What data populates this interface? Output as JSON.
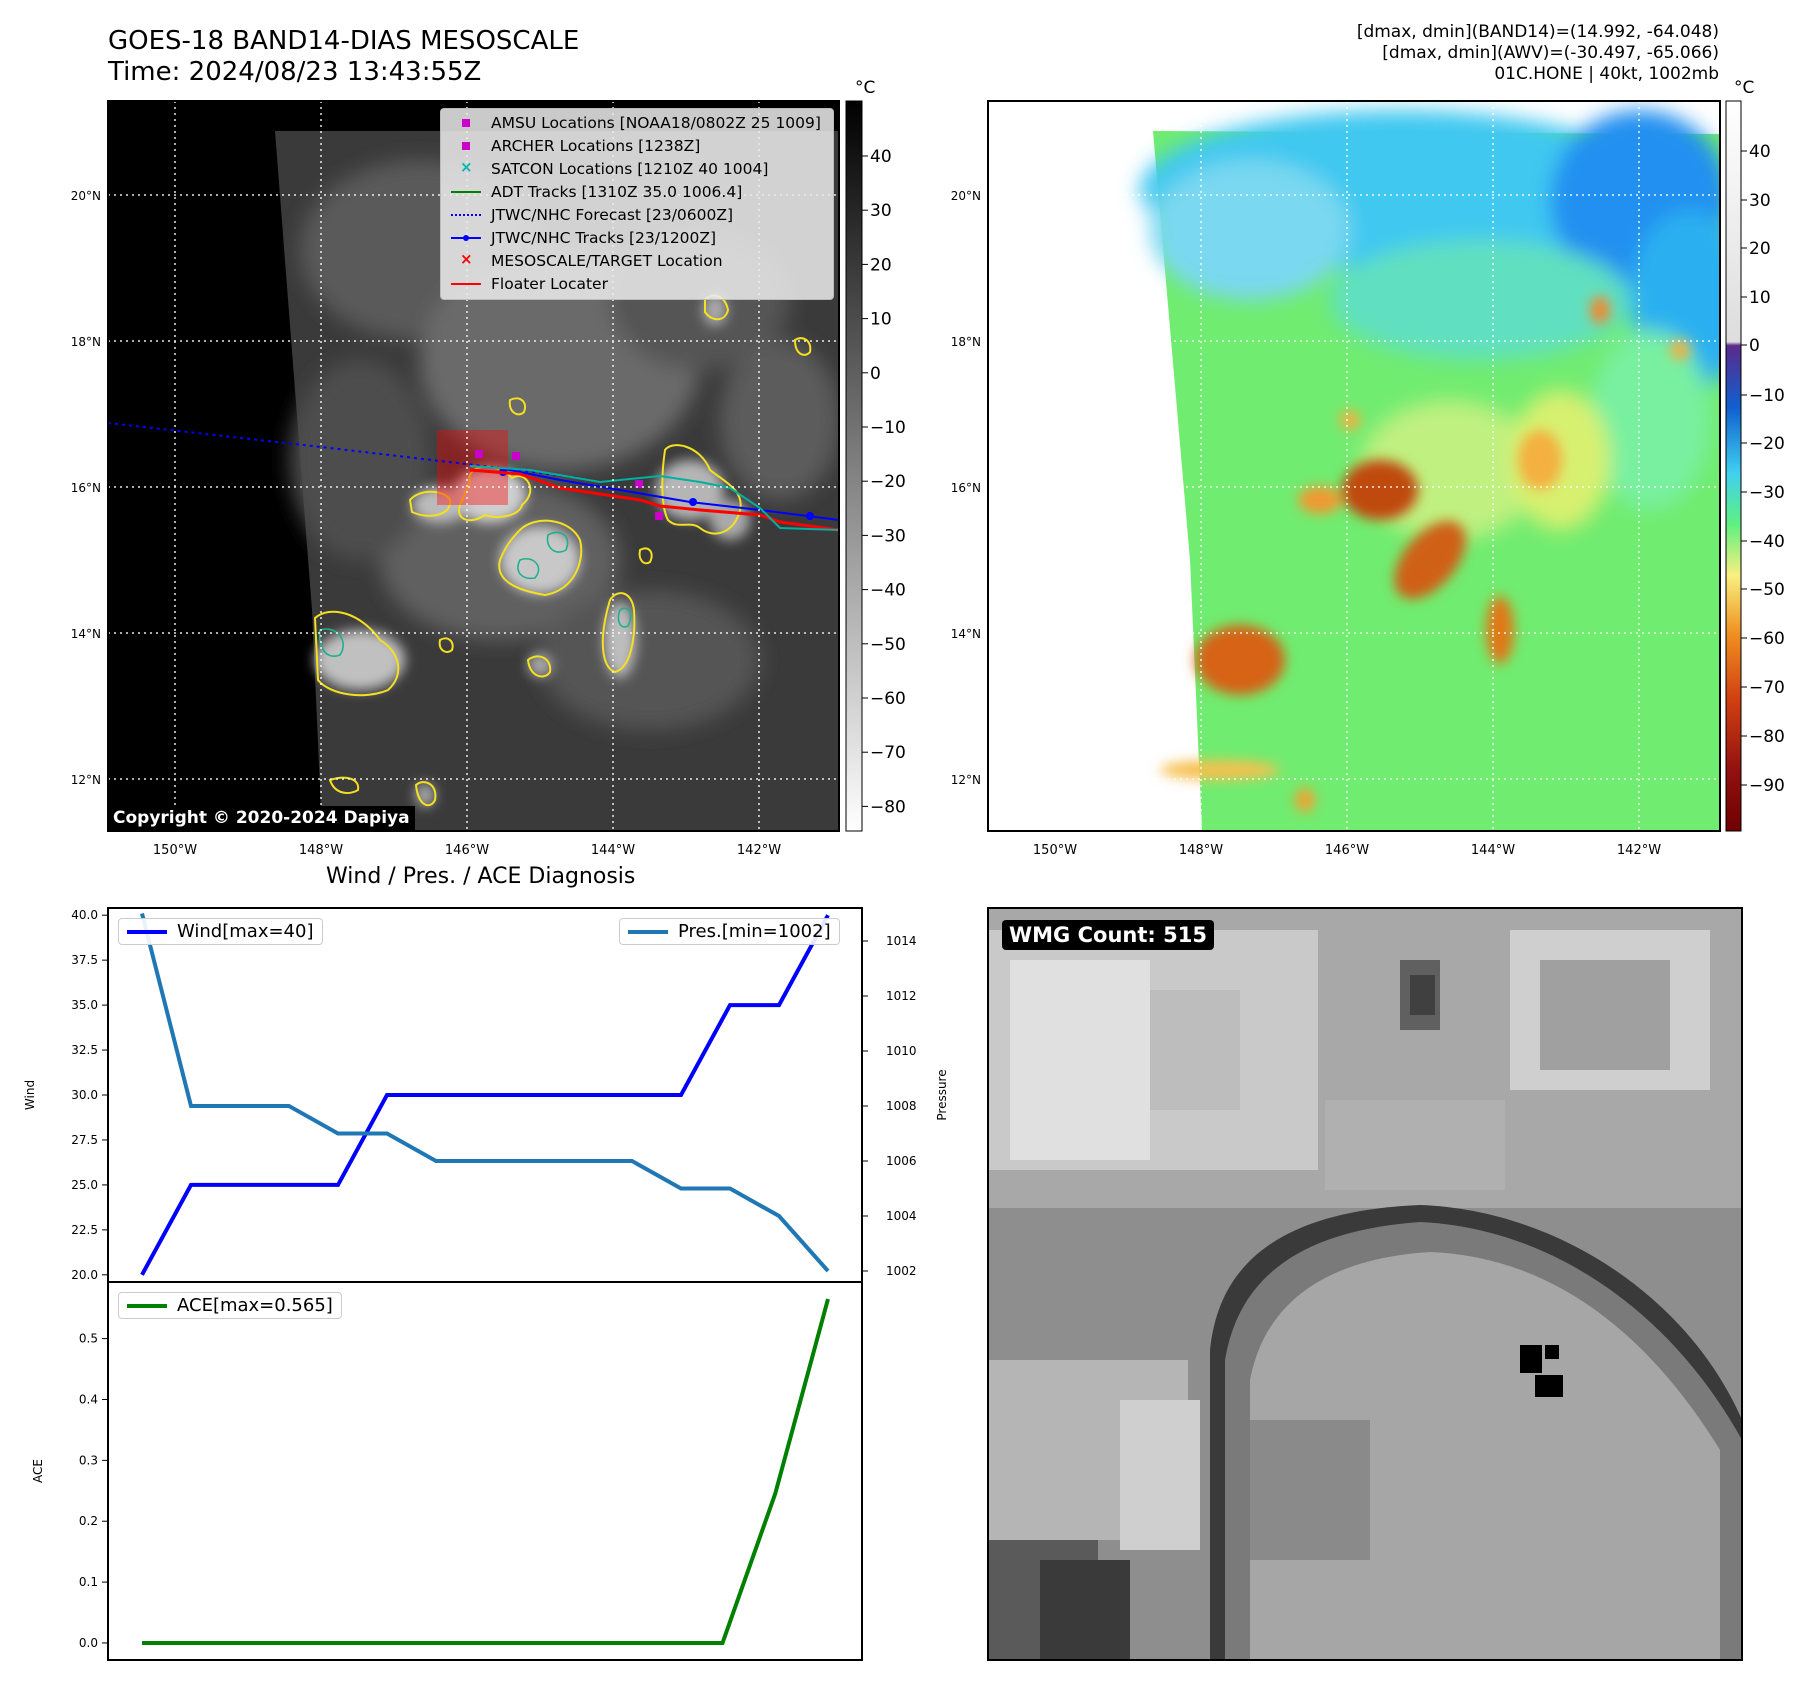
{
  "header": {
    "title_line1": "GOES-18 BAND14-DIAS MESOSCALE",
    "title_line2": "Time: 2024/08/23 13:43:55Z",
    "info_line1": "[dmax, dmin](BAND14)=(14.992, -64.048)",
    "info_line2": "[dmax, dmin](AWV)=(-30.497, -65.066)",
    "info_line3": "01C.HONE | 40kt, 1002mb"
  },
  "map": {
    "lat_labels": [
      "20°N",
      "18°N",
      "16°N",
      "14°N",
      "12°N"
    ],
    "lon_labels": [
      "150°W",
      "148°W",
      "146°W",
      "144°W",
      "142°W"
    ],
    "copyright": "Copyright © 2020-2024 Dapiya"
  },
  "legend": {
    "items": [
      {
        "label": "AMSU Locations [NOAA18/0802Z 25 1009]",
        "color": "#cc00cc",
        "symbol": "square"
      },
      {
        "label": "ARCHER Locations [1238Z]",
        "color": "#cc00cc",
        "symbol": "square"
      },
      {
        "label": "SATCON Locations [1210Z 40 1004]",
        "color": "#00b5b5",
        "symbol": "x"
      },
      {
        "label": "ADT Tracks [1310Z 35.0 1006.4]",
        "color": "#008000",
        "symbol": "line"
      },
      {
        "label": "JTWC/NHC Forecast [23/0600Z]",
        "color": "#0000ff",
        "symbol": "dotted"
      },
      {
        "label": "JTWC/NHC Tracks [23/1200Z]",
        "color": "#0000ff",
        "symbol": "line-dot"
      },
      {
        "label": "MESOSCALE/TARGET Location",
        "color": "#ff0000",
        "symbol": "x"
      },
      {
        "label": "Floater Locater",
        "color": "#ff0000",
        "symbol": "line"
      }
    ]
  },
  "colorbars": {
    "unit": "°C",
    "gray_ticks": [
      "40",
      "30",
      "20",
      "10",
      "0",
      "−10",
      "−20",
      "−30",
      "−40",
      "−50",
      "−60",
      "−70",
      "−80"
    ],
    "color_ticks": [
      "40",
      "30",
      "20",
      "10",
      "0",
      "−10",
      "−20",
      "−30",
      "−40",
      "−50",
      "−60",
      "−70",
      "−80",
      "−90"
    ]
  },
  "diagnosis": {
    "title": "Wind / Pres. / ACE Diagnosis",
    "wind_ylabel": "Wind",
    "pressure_ylabel": "Pressure",
    "ace_ylabel": "ACE",
    "wind_legend": "Wind[max=40]",
    "pressure_legend": "Pres.[min=1002]",
    "ace_legend": "ACE[max=0.565]",
    "wmg_count": "WMG Count: 515"
  },
  "chart_data": [
    {
      "type": "line",
      "title": "Wind / Pres. / ACE Diagnosis",
      "ylabel": "Wind",
      "y2label": "Pressure",
      "ylim": [
        19.6,
        40.4
      ],
      "y2lim": [
        1001.6,
        1015.2
      ],
      "yticks": [
        20.0,
        22.5,
        25.0,
        27.5,
        30.0,
        32.5,
        35.0,
        37.5,
        40.0
      ],
      "y2ticks": [
        1002,
        1004,
        1006,
        1008,
        1010,
        1012,
        1014
      ],
      "x": [
        0,
        1,
        2,
        3,
        4,
        5,
        6,
        7,
        8,
        9,
        10,
        11,
        12,
        13,
        14
      ],
      "series": [
        {
          "name": "Wind[max=40]",
          "axis": "left",
          "color": "#0000ff",
          "values": [
            20,
            25,
            25,
            25,
            25,
            30,
            30,
            30,
            30,
            30,
            30,
            30,
            35,
            35,
            40
          ]
        },
        {
          "name": "Pres.[min=1002]",
          "axis": "right",
          "color": "#1f77b4",
          "values": [
            1015,
            1008,
            1008,
            1008,
            1007,
            1007,
            1006,
            1006,
            1006,
            1006,
            1006,
            1005,
            1005,
            1004,
            1002
          ]
        }
      ]
    },
    {
      "type": "line",
      "ylabel": "ACE",
      "ylim": [
        -0.028,
        0.593
      ],
      "yticks": [
        0.0,
        0.1,
        0.2,
        0.3,
        0.4,
        0.5
      ],
      "x": [
        0,
        1,
        2,
        3,
        4,
        5,
        6,
        7,
        8,
        9,
        10,
        11,
        12,
        13
      ],
      "series": [
        {
          "name": "ACE[max=0.565]",
          "color": "#008000",
          "values": [
            0,
            0,
            0,
            0,
            0,
            0,
            0,
            0,
            0,
            0,
            0,
            0,
            0.245,
            0.565
          ]
        }
      ]
    }
  ]
}
